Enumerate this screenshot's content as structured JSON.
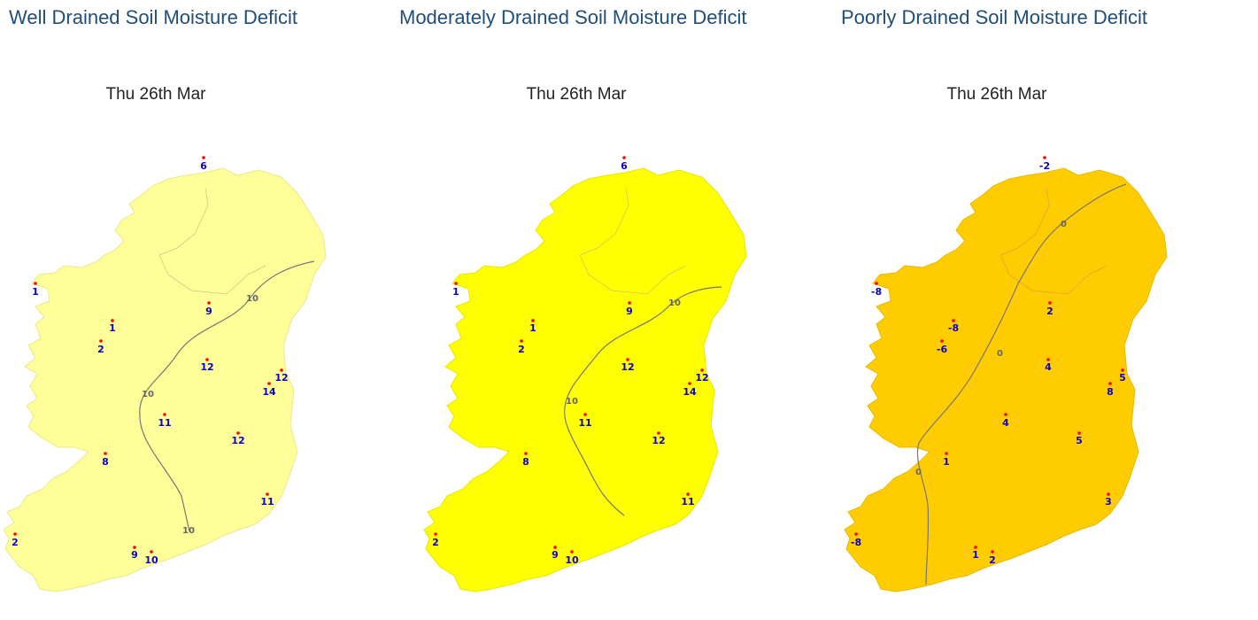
{
  "panels": [
    {
      "title": "Well Drained Soil Moisture Deficit",
      "date": "Thu 26th Mar",
      "fill": "#ffff99",
      "stations": [
        "6",
        "1",
        "1",
        "2",
        "9",
        "12",
        "12",
        "14",
        "11",
        "12",
        "8",
        "11",
        "2",
        "9",
        "10"
      ],
      "contour_label": "10"
    },
    {
      "title": "Moderately Drained Soil Moisture Deficit",
      "date": "Thu 26th Mar",
      "fill": "#ffff00",
      "stations": [
        "6",
        "1",
        "1",
        "2",
        "9",
        "12",
        "12",
        "14",
        "11",
        "12",
        "8",
        "11",
        "2",
        "9",
        "10"
      ],
      "contour_label": "10"
    },
    {
      "title": "Poorly Drained Soil Moisture Deficit",
      "date": "Thu 26th Mar",
      "fill": "#ffcc00",
      "stations": [
        "-2",
        "-8",
        "-8",
        "-6",
        "2",
        "4",
        "5",
        "8",
        "4",
        "5",
        "1",
        "3",
        "-8",
        "1",
        "2"
      ],
      "contour_label": "0"
    }
  ],
  "colors": {
    "title": "#1f4e79",
    "station_value": "#0a00c8",
    "station_dot": "#ff0000",
    "contour": "#666666"
  }
}
